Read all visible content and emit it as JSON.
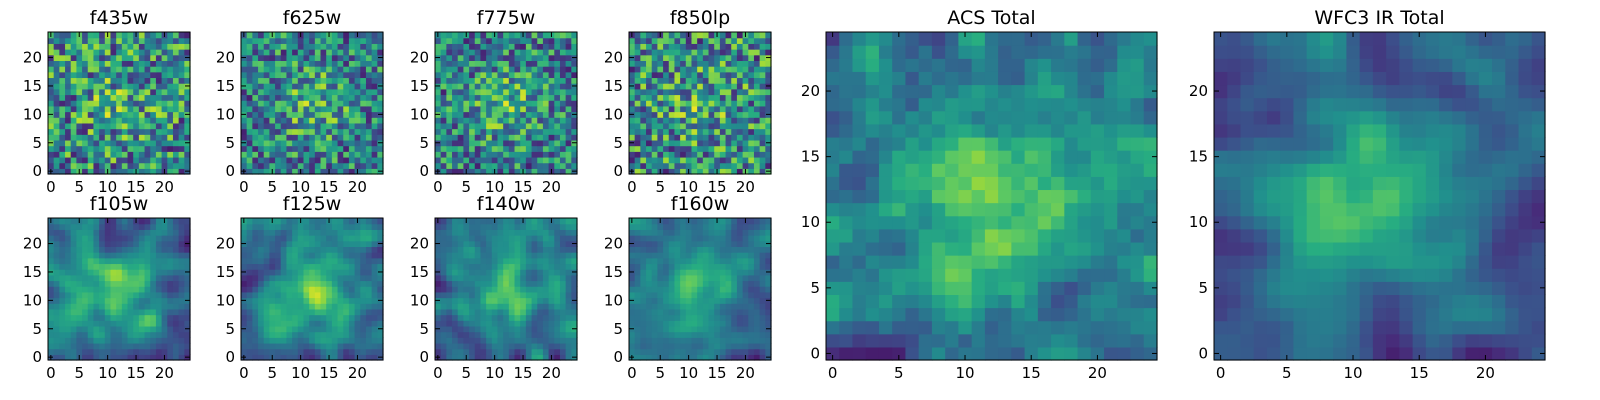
{
  "chart_data": [
    {
      "type": "heatmap",
      "title": "f435w",
      "grid_size": 25,
      "xlim": [
        -0.5,
        24.5
      ],
      "ylim": [
        -0.5,
        24.5
      ],
      "x_ticks": [
        0,
        5,
        10,
        15,
        20
      ],
      "y_ticks": [
        0,
        5,
        10,
        15,
        20
      ],
      "tick_labels": [
        "0",
        "5",
        "10",
        "15",
        "20"
      ],
      "colormap": "viridis",
      "smoothness": "noisy",
      "seed": 11,
      "center_brightness": 0.15
    },
    {
      "type": "heatmap",
      "title": "f625w",
      "grid_size": 25,
      "xlim": [
        -0.5,
        24.5
      ],
      "ylim": [
        -0.5,
        24.5
      ],
      "x_ticks": [
        0,
        5,
        10,
        15,
        20
      ],
      "y_ticks": [
        0,
        5,
        10,
        15,
        20
      ],
      "tick_labels": [
        "0",
        "5",
        "10",
        "15",
        "20"
      ],
      "colormap": "viridis",
      "smoothness": "noisy",
      "seed": 23,
      "center_brightness": 0.25
    },
    {
      "type": "heatmap",
      "title": "f775w",
      "grid_size": 25,
      "xlim": [
        -0.5,
        24.5
      ],
      "ylim": [
        -0.5,
        24.5
      ],
      "x_ticks": [
        0,
        5,
        10,
        15,
        20
      ],
      "y_ticks": [
        0,
        5,
        10,
        15,
        20
      ],
      "tick_labels": [
        "0",
        "5",
        "10",
        "15",
        "20"
      ],
      "colormap": "viridis",
      "smoothness": "noisy",
      "seed": 37,
      "center_brightness": 0.25
    },
    {
      "type": "heatmap",
      "title": "f850lp",
      "grid_size": 25,
      "xlim": [
        -0.5,
        24.5
      ],
      "ylim": [
        -0.5,
        24.5
      ],
      "x_ticks": [
        0,
        5,
        10,
        15,
        20
      ],
      "y_ticks": [
        0,
        5,
        10,
        15,
        20
      ],
      "tick_labels": [
        "0",
        "5",
        "10",
        "15",
        "20"
      ],
      "colormap": "viridis",
      "smoothness": "noisy",
      "seed": 41,
      "center_brightness": 0.15
    },
    {
      "type": "heatmap",
      "title": "f105w",
      "grid_size": 25,
      "xlim": [
        -0.5,
        24.5
      ],
      "ylim": [
        -0.5,
        24.5
      ],
      "x_ticks": [
        0,
        5,
        10,
        15,
        20
      ],
      "y_ticks": [
        0,
        5,
        10,
        15,
        20
      ],
      "tick_labels": [
        "0",
        "5",
        "10",
        "15",
        "20"
      ],
      "colormap": "viridis",
      "smoothness": "smooth",
      "seed": 53,
      "center_brightness": 0.35
    },
    {
      "type": "heatmap",
      "title": "f125w",
      "grid_size": 25,
      "xlim": [
        -0.5,
        24.5
      ],
      "ylim": [
        -0.5,
        24.5
      ],
      "x_ticks": [
        0,
        5,
        10,
        15,
        20
      ],
      "y_ticks": [
        0,
        5,
        10,
        15,
        20
      ],
      "tick_labels": [
        "0",
        "5",
        "10",
        "15",
        "20"
      ],
      "colormap": "viridis",
      "smoothness": "smooth",
      "seed": 67,
      "center_brightness": 0.4
    },
    {
      "type": "heatmap",
      "title": "f140w",
      "grid_size": 25,
      "xlim": [
        -0.5,
        24.5
      ],
      "ylim": [
        -0.5,
        24.5
      ],
      "x_ticks": [
        0,
        5,
        10,
        15,
        20
      ],
      "y_ticks": [
        0,
        5,
        10,
        15,
        20
      ],
      "tick_labels": [
        "0",
        "5",
        "10",
        "15",
        "20"
      ],
      "colormap": "viridis",
      "smoothness": "smooth",
      "seed": 79,
      "center_brightness": 0.4
    },
    {
      "type": "heatmap",
      "title": "f160w",
      "grid_size": 25,
      "xlim": [
        -0.5,
        24.5
      ],
      "ylim": [
        -0.5,
        24.5
      ],
      "x_ticks": [
        0,
        5,
        10,
        15,
        20
      ],
      "y_ticks": [
        0,
        5,
        10,
        15,
        20
      ],
      "tick_labels": [
        "0",
        "5",
        "10",
        "15",
        "20"
      ],
      "colormap": "viridis",
      "smoothness": "smooth",
      "seed": 83,
      "center_brightness": 0.45
    },
    {
      "type": "heatmap",
      "title": "ACS Total",
      "grid_size": 25,
      "xlim": [
        -0.5,
        24.5
      ],
      "ylim": [
        -0.5,
        24.5
      ],
      "x_ticks": [
        0,
        5,
        10,
        15,
        20
      ],
      "y_ticks": [
        0,
        5,
        10,
        15,
        20
      ],
      "tick_labels": [
        "0",
        "5",
        "10",
        "15",
        "20"
      ],
      "colormap": "viridis",
      "smoothness": "medium",
      "seed": 97,
      "center_brightness": 0.35
    },
    {
      "type": "heatmap",
      "title": "WFC3 IR Total",
      "grid_size": 25,
      "xlim": [
        -0.5,
        24.5
      ],
      "ylim": [
        -0.5,
        24.5
      ],
      "x_ticks": [
        0,
        5,
        10,
        15,
        20
      ],
      "y_ticks": [
        0,
        5,
        10,
        15,
        20
      ],
      "tick_labels": [
        "0",
        "5",
        "10",
        "15",
        "20"
      ],
      "colormap": "viridis",
      "smoothness": "smooth",
      "seed": 101,
      "center_brightness": 0.5
    }
  ]
}
